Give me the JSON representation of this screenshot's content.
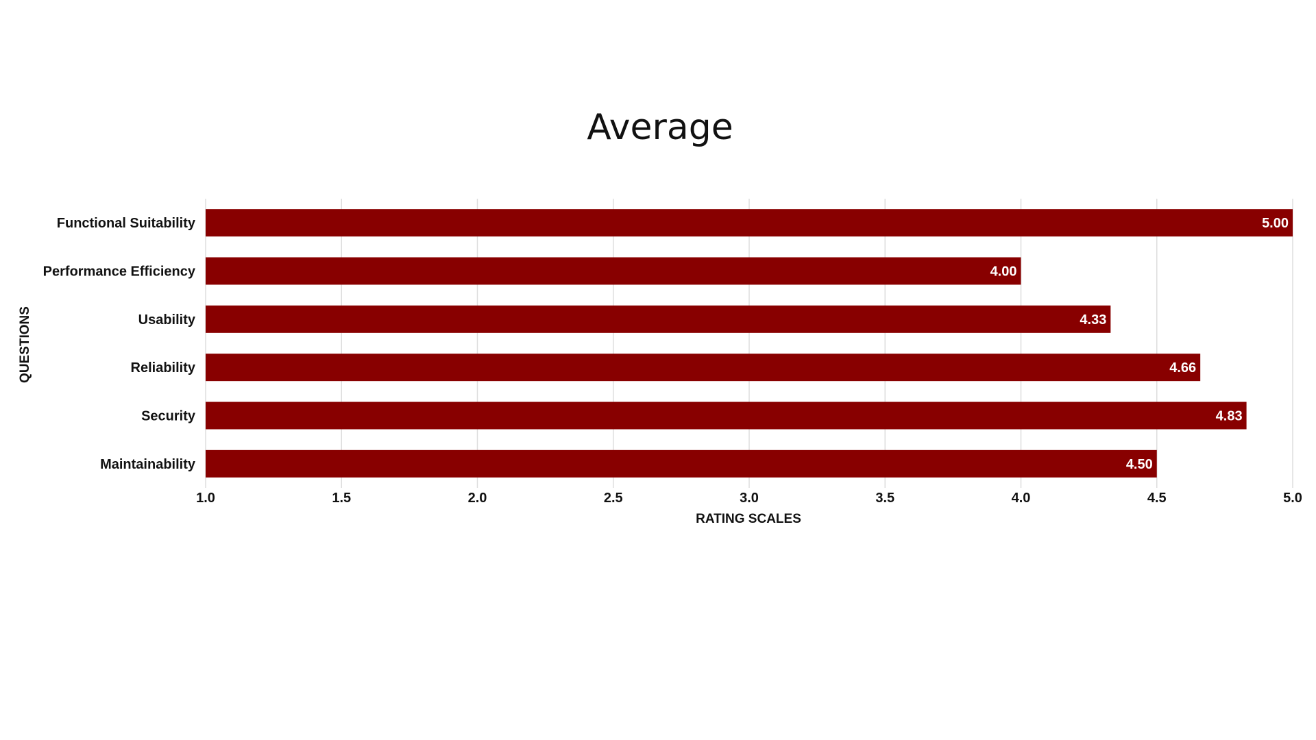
{
  "chart_data": {
    "type": "bar",
    "orientation": "horizontal",
    "title": "Average",
    "xlabel": "RATING SCALES",
    "ylabel": "QUESTIONS",
    "categories": [
      "Functional Suitability",
      "Performance Efficiency",
      "Usability",
      "Reliability",
      "Security",
      "Maintainability"
    ],
    "values": [
      5.0,
      4.0,
      4.33,
      4.66,
      4.83,
      4.5
    ],
    "value_labels": [
      "5.00",
      "4.00",
      "4.33",
      "4.66",
      "4.83",
      "4.50"
    ],
    "xlim": [
      1.0,
      5.0
    ],
    "xticks": [
      "1.0",
      "1.5",
      "2.0",
      "2.5",
      "3.0",
      "3.5",
      "4.0",
      "4.5",
      "5.0"
    ],
    "grid": "vertical",
    "bar_color": "#880000",
    "data_label_color": "#ffffff"
  }
}
